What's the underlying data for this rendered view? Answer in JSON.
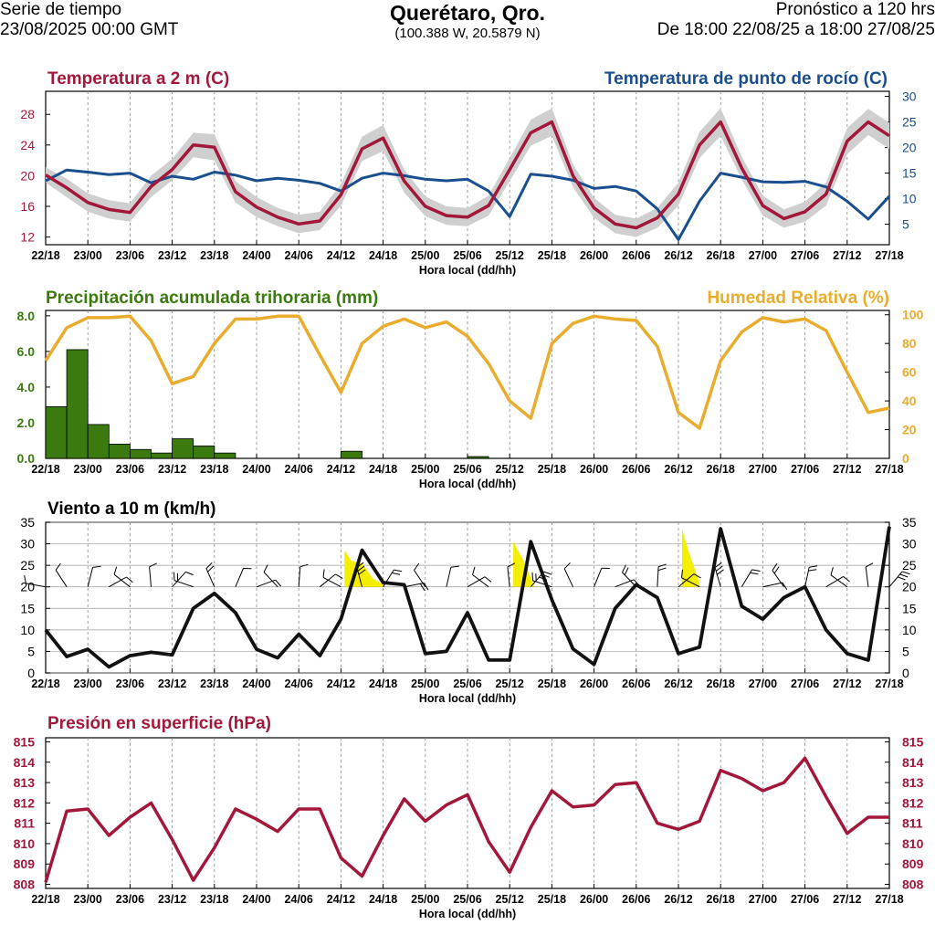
{
  "header": {
    "left_line1": "Serie de tiempo",
    "left_line2": "23/08/2025 00:00 GMT",
    "title": "Querétaro, Qro.",
    "coords": "(100.388 W, 20.5879 N)",
    "right_line1": "Pronóstico a 120 hrs",
    "right_line2": "De 18:00 22/08/25 a 18:00 27/08/25"
  },
  "colors": {
    "temperature": "#a3173b",
    "dewpoint": "#1a4f8e",
    "precipitation": "#3a7a0f",
    "humidity": "#e9ac2c",
    "wind": "#111111",
    "pressure": "#a3173b",
    "gust_fill": "#f4ee00",
    "envelope": "#cfcfcf"
  },
  "time_axis": {
    "xlabel": "Hora local (dd/hh)",
    "ticks": [
      "22/18",
      "23/00",
      "23/06",
      "23/12",
      "23/18",
      "24/00",
      "24/06",
      "24/12",
      "24/18",
      "25/00",
      "25/06",
      "25/12",
      "25/18",
      "26/00",
      "26/06",
      "26/12",
      "26/18",
      "27/00",
      "27/06",
      "27/12",
      "27/18"
    ],
    "start_hour": 0,
    "end_hour": 120
  },
  "chart_data": [
    {
      "type": "line",
      "panel": "temperature",
      "title_left": "Temperatura a 2 m (C)",
      "title_right": "Temperatura de punto de rocío (C)",
      "ylim_left": [
        11,
        31
      ],
      "yticks_left": [
        12,
        16,
        20,
        24,
        28
      ],
      "ylim_right": [
        1,
        31
      ],
      "yticks_right": [
        5,
        10,
        15,
        20,
        25,
        30
      ],
      "x_hours": [
        0,
        3,
        6,
        9,
        12,
        15,
        18,
        21,
        24,
        27,
        30,
        33,
        36,
        39,
        42,
        45,
        48,
        51,
        54,
        57,
        60,
        63,
        66,
        69,
        72,
        75,
        78,
        81,
        84,
        87,
        90,
        93,
        96,
        99,
        102,
        105,
        108,
        111,
        114,
        117,
        120
      ],
      "series": [
        {
          "name": "Temperatura a 2 m (C)",
          "axis": "left",
          "values": [
            20.1,
            18.4,
            16.5,
            15.6,
            15.2,
            18.6,
            20.8,
            24.0,
            23.7,
            17.9,
            15.9,
            14.6,
            13.7,
            14.1,
            17.5,
            23.5,
            24.9,
            19.3,
            16.0,
            14.8,
            14.6,
            16.1,
            20.8,
            25.6,
            27.0,
            20.0,
            15.8,
            13.7,
            13.2,
            14.5,
            17.6,
            24.0,
            27.0,
            21.0,
            16.1,
            14.4,
            15.3,
            17.6,
            24.5,
            27.0,
            25.2
          ],
          "band": [
            1.0,
            1.2,
            1.2,
            1.2,
            1.2,
            1.4,
            1.4,
            1.6,
            1.7,
            1.4,
            1.3,
            1.2,
            1.2,
            1.2,
            1.4,
            1.6,
            1.7,
            1.5,
            1.3,
            1.2,
            1.2,
            1.3,
            1.5,
            1.7,
            1.8,
            1.5,
            1.3,
            1.2,
            1.2,
            1.3,
            1.5,
            1.7,
            1.8,
            1.5,
            1.3,
            1.2,
            1.3,
            1.5,
            1.7,
            1.7,
            1.7
          ]
        },
        {
          "name": "Temperatura de punto de rocío (C)",
          "axis": "right",
          "values": [
            13.5,
            15.6,
            15.2,
            14.7,
            15.0,
            13.1,
            14.4,
            13.8,
            15.2,
            14.6,
            13.5,
            14.0,
            13.6,
            13.0,
            11.5,
            14.0,
            15.0,
            14.5,
            13.8,
            13.5,
            13.8,
            11.5,
            6.5,
            14.8,
            14.4,
            13.6,
            12.0,
            12.4,
            11.5,
            8.0,
            2.0,
            9.5,
            15.0,
            14.2,
            13.3,
            13.2,
            13.4,
            12.3,
            9.5,
            6.0,
            10.5
          ]
        }
      ]
    },
    {
      "type": "bar",
      "panel": "precipitation",
      "title_left": "Precipitación acumulada trihoraria (mm)",
      "title_right": "Humedad Relativa (%)",
      "ylim_left": [
        0,
        8.3
      ],
      "yticks_left": [
        "0.0",
        "2.0",
        "4.0",
        "6.0",
        "8.0"
      ],
      "ylim_right": [
        0,
        103
      ],
      "yticks_right": [
        0,
        20,
        40,
        60,
        80,
        100
      ],
      "bar_start_hours": [
        0,
        3,
        6,
        9,
        12,
        15,
        18,
        21,
        24,
        42,
        60
      ],
      "bar_values": [
        2.9,
        6.1,
        1.9,
        0.8,
        0.5,
        0.3,
        1.1,
        0.7,
        0.3,
        0.4,
        0.1
      ],
      "humidity_hours": [
        0,
        3,
        6,
        9,
        12,
        15,
        18,
        21,
        24,
        27,
        30,
        33,
        36,
        39,
        42,
        45,
        48,
        51,
        54,
        57,
        60,
        63,
        66,
        69,
        72,
        75,
        78,
        81,
        84,
        87,
        90,
        93,
        96,
        99,
        102,
        105,
        108,
        111,
        114,
        117,
        120
      ],
      "humidity_values": [
        68,
        91,
        98,
        98,
        99,
        82,
        52,
        57,
        80,
        97,
        97,
        99,
        99,
        72,
        46,
        80,
        92,
        97,
        91,
        95,
        85,
        66,
        40,
        28,
        80,
        94,
        99,
        97,
        96,
        78,
        32,
        21,
        68,
        88,
        98,
        95,
        97,
        89,
        60,
        32,
        35
      ]
    },
    {
      "type": "line",
      "panel": "wind",
      "title": "Viento a 10 m (km/h)",
      "ylim": [
        0,
        35
      ],
      "yticks": [
        0,
        5,
        10,
        15,
        20,
        25,
        30,
        35
      ],
      "x_hours": [
        0,
        3,
        6,
        9,
        12,
        15,
        18,
        21,
        24,
        27,
        30,
        33,
        36,
        39,
        42,
        45,
        48,
        51,
        54,
        57,
        60,
        63,
        66,
        69,
        72,
        75,
        78,
        81,
        84,
        87,
        90,
        93,
        96,
        99,
        102,
        105,
        108,
        111,
        114,
        117,
        120
      ],
      "series": [
        {
          "name": "Viento a 10 m (km/h)",
          "values": [
            10,
            3.8,
            5.5,
            1.4,
            4,
            4.8,
            4.2,
            15,
            18.5,
            14,
            5.5,
            3.5,
            9,
            4,
            12.5,
            28.5,
            21,
            20.5,
            4.5,
            5,
            14,
            3,
            3,
            30.5,
            17,
            5.6,
            2,
            15,
            20.5,
            17.5,
            4.5,
            6,
            33.5,
            15.5,
            12.5,
            17.5,
            20,
            10,
            4.5,
            3,
            34
          ]
        }
      ],
      "gust_highlights": [
        {
          "hours": [
            42.5,
            43.5,
            45,
            46.5,
            48
          ],
          "values": [
            28.5,
            26,
            25.5,
            22,
            20.5
          ]
        },
        {
          "hours": [
            66.5,
            68,
            69.5
          ],
          "values": [
            30.5,
            26,
            20
          ]
        },
        {
          "hours": [
            90.5,
            91.5,
            93
          ],
          "values": [
            33.5,
            28,
            21
          ]
        }
      ],
      "barbs_note": "wind barbs along the 20 km/h line"
    },
    {
      "type": "line",
      "panel": "pressure",
      "title": "Presión en superficie (hPa)",
      "ylim": [
        807.8,
        815.2
      ],
      "yticks": [
        808,
        809,
        810,
        811,
        812,
        813,
        814,
        815
      ],
      "x_hours": [
        0,
        3,
        6,
        9,
        12,
        15,
        18,
        21,
        24,
        27,
        30,
        33,
        36,
        39,
        42,
        45,
        48,
        51,
        54,
        57,
        60,
        63,
        66,
        69,
        72,
        75,
        78,
        81,
        84,
        87,
        90,
        93,
        96,
        99,
        102,
        105,
        108,
        111,
        114,
        117,
        120
      ],
      "series": [
        {
          "name": "Presión en superficie (hPa)",
          "values": [
            808.1,
            811.6,
            811.7,
            810.4,
            811.3,
            812.0,
            810.2,
            808.2,
            809.8,
            811.7,
            811.2,
            810.6,
            811.7,
            811.7,
            809.3,
            808.4,
            810.4,
            812.2,
            811.1,
            811.9,
            812.4,
            810.1,
            808.6,
            810.8,
            812.6,
            811.8,
            811.9,
            812.9,
            813.0,
            811.0,
            810.7,
            811.1,
            813.6,
            813.2,
            812.6,
            813.0,
            814.2,
            812.3,
            810.5,
            811.3,
            811.3
          ]
        }
      ]
    }
  ]
}
